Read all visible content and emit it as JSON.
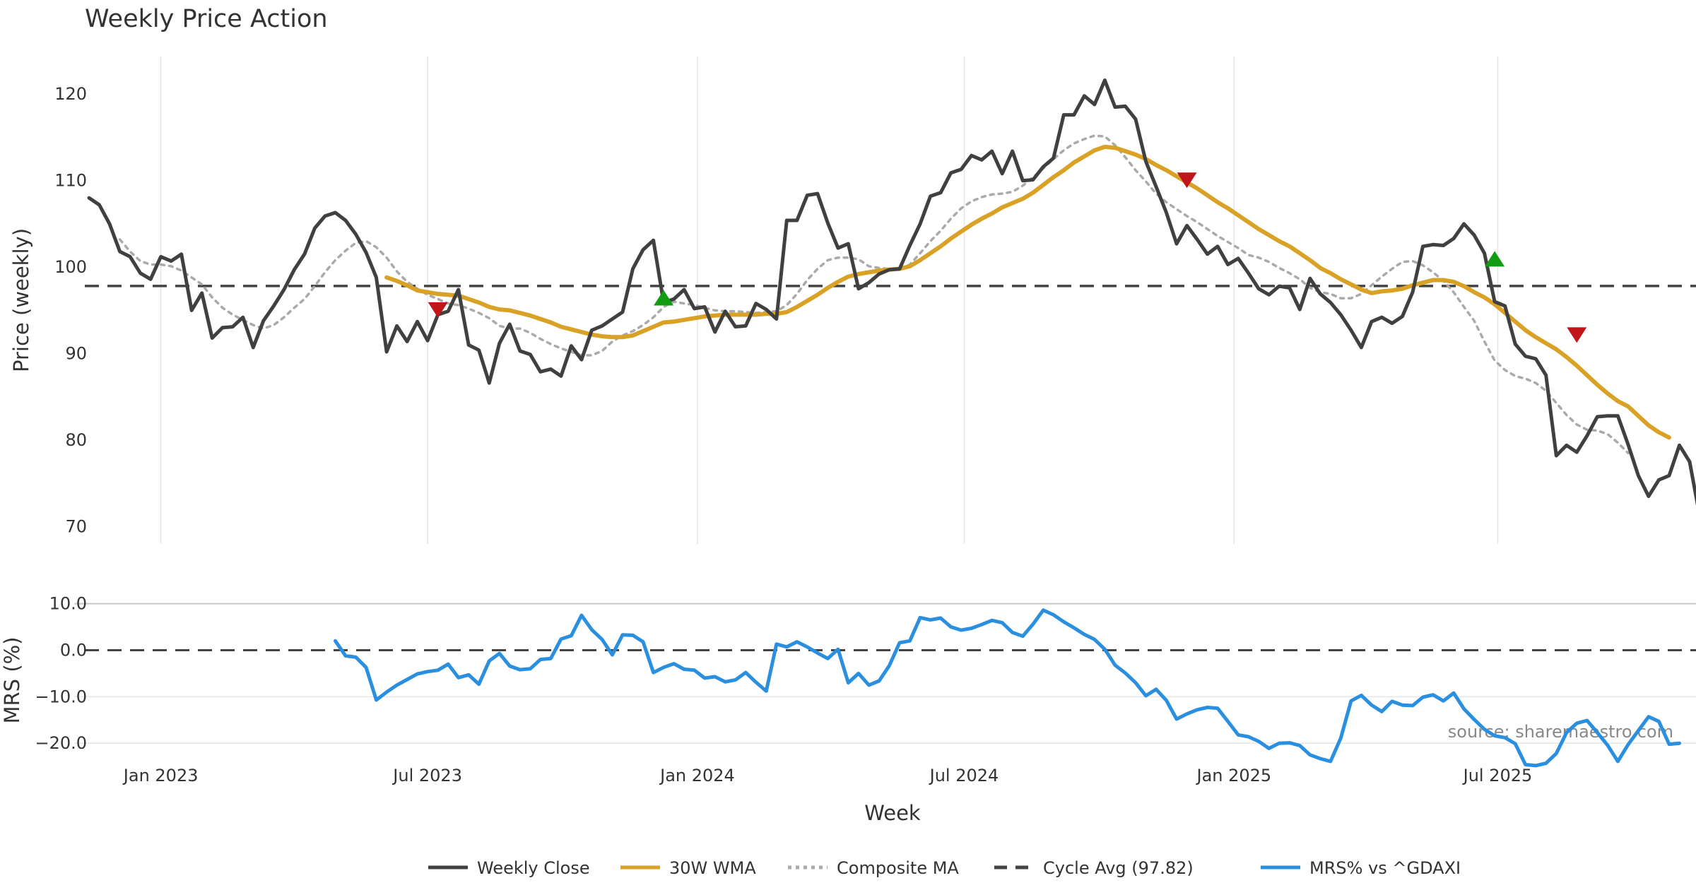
{
  "chart_data": [
    {
      "type": "line",
      "title": "Weekly Price Action",
      "ylabel": "Price (weekly)",
      "ylim": [
        68,
        125
      ],
      "yticks": [
        70,
        80,
        90,
        100,
        110,
        120
      ],
      "x_start": "2022-11-14",
      "x_step_days": 7,
      "series": [
        {
          "name": "Weekly Close",
          "color": "#404040",
          "style": "solid",
          "offset": 0,
          "values": [
            108,
            107.2,
            105,
            101.8,
            101.2,
            99.3,
            98.6,
            101.2,
            100.7,
            101.5,
            95,
            97,
            91.8,
            93,
            93.1,
            94.2,
            90.7,
            93.8,
            95.5,
            97.4,
            99.7,
            101.5,
            104.5,
            105.9,
            106.3,
            105.4,
            103.8,
            101.7,
            98.8,
            90.2,
            93.2,
            91.4,
            93.7,
            91.5,
            94.5,
            94.9,
            97.4,
            91,
            90.4,
            86.6,
            91.2,
            93.4,
            90.3,
            89.9,
            87.9,
            88.2,
            87.4,
            90.9,
            89.3,
            92.7,
            93.2,
            94,
            94.8,
            99.8,
            102,
            103.1,
            95.9,
            96.3,
            97.4,
            95.2,
            95.4,
            92.5,
            94.9,
            93.1,
            93.2,
            95.8,
            95.1,
            94,
            105.4,
            105.4,
            108.3,
            108.5,
            105.1,
            102.2,
            102.7,
            97.5,
            98.2,
            99.2,
            99.7,
            99.8,
            102.5,
            105,
            108.2,
            108.6,
            110.9,
            111.3,
            112.9,
            112.4,
            113.4,
            110.8,
            113.4,
            110,
            110.1,
            111.6,
            112.6,
            117.6,
            117.6,
            119.8,
            118.8,
            121.6,
            118.5,
            118.6,
            117.1,
            112.2,
            109.3,
            106.3,
            102.7,
            104.8,
            103.2,
            101.5,
            102.4,
            100.3,
            101,
            99.3,
            97.5,
            96.8,
            97.8,
            97.6,
            95.1,
            98.7,
            96.9,
            95.9,
            94.5,
            92.7,
            90.7,
            93.7,
            94.2,
            93.5,
            94.3,
            97.1,
            102.4,
            102.6,
            102.5,
            103.3,
            105,
            103.7,
            101.6,
            96,
            95.5,
            91.1,
            89.7,
            89.4,
            87.5,
            78.2,
            79.4,
            78.6,
            80.5,
            82.7,
            82.8,
            82.8,
            79.5,
            75.9,
            73.5,
            75.4,
            75.9,
            79.4,
            77.5,
            71.1,
            71.4
          ]
        },
        {
          "name": "30W WMA",
          "color": "#d9a227",
          "style": "solid",
          "offset": 29,
          "values": [
            98.8,
            98.4,
            97.9,
            97.3,
            97.1,
            96.9,
            96.8,
            96.7,
            96.3,
            95.9,
            95.4,
            95.1,
            95,
            94.7,
            94.4,
            94,
            93.6,
            93.1,
            92.8,
            92.5,
            92.2,
            92,
            91.9,
            91.9,
            92.1,
            92.6,
            93.1,
            93.6,
            93.7,
            93.9,
            94.1,
            94.3,
            94.4,
            94.5,
            94.5,
            94.5,
            94.5,
            94.6,
            94.6,
            94.8,
            95.4,
            96.1,
            96.8,
            97.6,
            98.3,
            98.9,
            99.2,
            99.4,
            99.6,
            99.7,
            99.8,
            100.1,
            100.8,
            101.6,
            102.4,
            103.3,
            104.1,
            104.9,
            105.6,
            106.2,
            106.9,
            107.4,
            107.9,
            108.6,
            109.5,
            110.4,
            111.2,
            112.1,
            112.8,
            113.5,
            113.9,
            113.8,
            113.4,
            113,
            112.5,
            111.8,
            111.2,
            110.5,
            109.8,
            109.1,
            108.3,
            107.5,
            106.8,
            106,
            105.2,
            104.4,
            103.7,
            103,
            102.4,
            101.6,
            100.8,
            99.9,
            99.3,
            98.6,
            98,
            97.4,
            97,
            97.2,
            97.3,
            97.5,
            97.9,
            98.2,
            98.5,
            98.5,
            98.3,
            97.8,
            97.1,
            96.5,
            95.7,
            94.7,
            93.7,
            92.7,
            91.9,
            91.2,
            90.5,
            89.6,
            88.6,
            87.5,
            86.4,
            85.4,
            84.5,
            83.9,
            82.8,
            81.7,
            80.9,
            80.3
          ]
        },
        {
          "name": "Composite MA",
          "color": "#aaaaaa",
          "style": "dotted",
          "offset": 3,
          "values": [
            103.2,
            101.8,
            100.7,
            100.3,
            100.3,
            100.1,
            99.6,
            98.8,
            98,
            96.5,
            95.3,
            94.5,
            93.9,
            93.3,
            92.9,
            93.3,
            94.2,
            95.3,
            96.3,
            97.8,
            99.4,
            100.8,
            101.9,
            102.8,
            103,
            102.3,
            101.1,
            99.5,
            98.3,
            97.5,
            96.8,
            96.3,
            95.8,
            95.6,
            95.2,
            94.7,
            94.1,
            93.2,
            92.9,
            92.9,
            92.4,
            91.7,
            91.1,
            90.6,
            90.2,
            89.8,
            89.8,
            90.3,
            91.4,
            92.1,
            92.6,
            93.3,
            94.2,
            95.4,
            96,
            95.8,
            95.6,
            95.3,
            95,
            94.9,
            94.9,
            94.8,
            94.7,
            94.8,
            94.9,
            95.6,
            96.9,
            98.5,
            99.8,
            100.8,
            101.1,
            101.1,
            100.9,
            100.1,
            99.9,
            99.8,
            99.7,
            100.3,
            101.6,
            103,
            104.2,
            105.6,
            106.8,
            107.6,
            108.1,
            108.4,
            108.5,
            108.7,
            109.4,
            110.4,
            111.4,
            112.5,
            113.5,
            114.3,
            114.8,
            115.2,
            115.1,
            114.1,
            112.7,
            111.2,
            109.9,
            108.5,
            107.5,
            106.7,
            105.9,
            105.2,
            104.4,
            103.6,
            102.9,
            102.2,
            101.4,
            101.1,
            100.6,
            99.9,
            99.3,
            98.6,
            97.6,
            97.1,
            96.9,
            96.4,
            96.4,
            96.9,
            97.9,
            98.9,
            99.8,
            100.6,
            100.7,
            100.2,
            99.4,
            98.4,
            97.1,
            95.4,
            93.8,
            91.4,
            89.2,
            88.1,
            87.4,
            87.1,
            86.6,
            85.7,
            84.3,
            82.9,
            81.8,
            81.2,
            81.1,
            80.7,
            79.7,
            78.5
          ]
        }
      ],
      "reference_line": {
        "name": "Cycle Avg (97.82)",
        "value": 97.82,
        "color": "#444444",
        "style": "dashed"
      },
      "signals": [
        {
          "index": 34,
          "value": 95.2,
          "kind": "sell",
          "color": "#c0151b"
        },
        {
          "index": 56,
          "value": 96.3,
          "kind": "buy",
          "color": "#129c12"
        },
        {
          "index": 107,
          "value": 110.2,
          "kind": "sell",
          "color": "#c0151b"
        },
        {
          "index": 137,
          "value": 100.8,
          "kind": "buy",
          "color": "#129c12"
        },
        {
          "index": 145,
          "value": 92.3,
          "kind": "sell",
          "color": "#c0151b"
        }
      ]
    },
    {
      "type": "line",
      "ylabel": "MRS (%)",
      "ylim": [
        -23,
        11
      ],
      "yticks": [
        10,
        0,
        -10,
        -20
      ],
      "ytick_labels": [
        "10.0",
        "0.0",
        "−10.0",
        "−20.0"
      ],
      "xlabel": "Week",
      "xtick_labels": [
        "Jan 2023",
        "Jul 2023",
        "Jan 2024",
        "Jul 2024",
        "Jan 2025",
        "Jul 2025"
      ],
      "xtick_indices": [
        7,
        33,
        59.3,
        85.3,
        111.6,
        137.3
      ],
      "series": [
        {
          "name": "MRS% vs ^GDAXI",
          "color": "#2b8fe0",
          "style": "solid",
          "offset": 24,
          "values": [
            2,
            -1.2,
            -1.5,
            -3.7,
            -10.7,
            -9,
            -7.5,
            -6.3,
            -5.1,
            -4.6,
            -4.3,
            -3,
            -5.9,
            -5.3,
            -7.3,
            -2.3,
            -0.7,
            -3.4,
            -4.2,
            -4,
            -2,
            -1.8,
            2.4,
            3.1,
            7.5,
            4.4,
            2.3,
            -1,
            3.3,
            3.2,
            1.8,
            -4.8,
            -3.7,
            -2.9,
            -4.1,
            -4.3,
            -6,
            -5.7,
            -6.8,
            -6.4,
            -4.8,
            -6.9,
            -8.8,
            1.3,
            0.7,
            1.8,
            0.7,
            -0.6,
            -1.8,
            0.2,
            -7,
            -5,
            -7.5,
            -6.6,
            -3.3,
            1.6,
            2,
            7,
            6.5,
            6.9,
            5,
            4.3,
            4.7,
            5.5,
            6.4,
            5.9,
            3.8,
            3,
            5.6,
            8.6,
            7.6,
            6.1,
            4.8,
            3.4,
            2.3,
            0.2,
            -3.2,
            -4.9,
            -7,
            -9.8,
            -8.4,
            -10.8,
            -14.8,
            -13.7,
            -12.8,
            -12.3,
            -12.5,
            -15.3,
            -18.2,
            -18.6,
            -19.6,
            -21.1,
            -20,
            -19.9,
            -20.5,
            -22.5,
            -23.3,
            -23.9,
            -18.9,
            -10.9,
            -9.7,
            -11.8,
            -13.2,
            -11,
            -11.8,
            -11.9,
            -10.1,
            -9.6,
            -10.9,
            -9.2,
            -12.6,
            -14.9,
            -17,
            -18.4,
            -18.8,
            -20.1,
            -24.6,
            -24.8,
            -24.3,
            -22.2,
            -17.7,
            -15.7,
            -15.1,
            -17.7,
            -20.4,
            -23.9,
            -20.3,
            -17.3,
            -14.3,
            -15.3,
            -20.2,
            -20
          ]
        }
      ],
      "reference_line": {
        "value": 0,
        "color": "#444444",
        "style": "dashed"
      },
      "annotation": "source: sharemaestro.com"
    }
  ],
  "legend": [
    {
      "label": "Weekly Close",
      "color": "#404040",
      "style": "solid"
    },
    {
      "label": "30W WMA",
      "color": "#d9a227",
      "style": "solid"
    },
    {
      "label": "Composite MA",
      "color": "#aaaaaa",
      "style": "dotted"
    },
    {
      "label": "Cycle Avg (97.82)",
      "color": "#444444",
      "style": "dashed"
    },
    {
      "label": "MRS% vs ^GDAXI",
      "color": "#2b8fe0",
      "style": "solid"
    }
  ]
}
